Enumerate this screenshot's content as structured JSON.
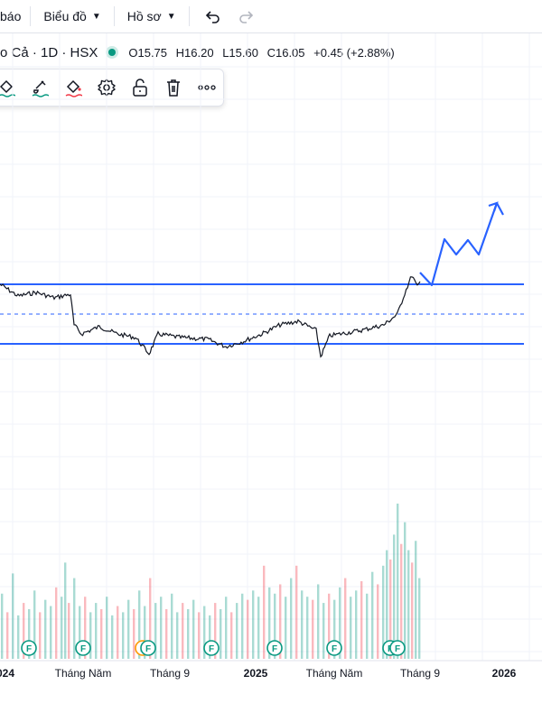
{
  "topbar": {
    "cut_label": "báo",
    "chart_menu": "Biểu đồ",
    "profile_menu": "Hồ sơ"
  },
  "legend": {
    "symbol_title": "o Cả · 1D · HSX",
    "open": "O15.75",
    "high": "H16.20",
    "low": "L15.60",
    "close": "C16.05",
    "change": "+0.45 (+2.88%)"
  },
  "colors": {
    "up": "#089981",
    "down": "#f23645",
    "line_blue": "#2962ff",
    "price": "#131722",
    "grid": "#f0f3fa"
  },
  "chart_data": {
    "type": "line",
    "series": [
      {
        "values": [
          [
            0,
            315
          ],
          [
            20,
            328
          ],
          [
            40,
            324
          ],
          [
            60,
            330
          ],
          [
            78,
            326
          ],
          [
            82,
            360
          ],
          [
            90,
            370
          ],
          [
            110,
            362
          ],
          [
            130,
            370
          ],
          [
            150,
            374
          ],
          [
            165,
            392
          ],
          [
            175,
            370
          ],
          [
            200,
            374
          ],
          [
            230,
            376
          ],
          [
            250,
            384
          ],
          [
            270,
            378
          ],
          [
            290,
            370
          ],
          [
            310,
            360
          ],
          [
            330,
            356
          ],
          [
            350,
            366
          ],
          [
            355,
            395
          ],
          [
            365,
            372
          ],
          [
            400,
            366
          ],
          [
            425,
            360
          ],
          [
            440,
            348
          ],
          [
            448,
            325
          ],
          [
            456,
            305
          ],
          [
            462,
            318
          ],
          [
            465,
            312
          ]
        ]
      }
    ],
    "volume": [
      {
        "x": 2,
        "v": 0.42
      },
      {
        "x": 8,
        "v": 0.3
      },
      {
        "x": 14,
        "v": 0.55
      },
      {
        "x": 20,
        "v": 0.28
      },
      {
        "x": 26,
        "v": 0.36
      },
      {
        "x": 32,
        "v": 0.32
      },
      {
        "x": 38,
        "v": 0.44
      },
      {
        "x": 44,
        "v": 0.3
      },
      {
        "x": 50,
        "v": 0.38
      },
      {
        "x": 56,
        "v": 0.34
      },
      {
        "x": 62,
        "v": 0.46
      },
      {
        "x": 68,
        "v": 0.4
      },
      {
        "x": 72,
        "v": 0.62
      },
      {
        "x": 76,
        "v": 0.36
      },
      {
        "x": 82,
        "v": 0.52
      },
      {
        "x": 88,
        "v": 0.34
      },
      {
        "x": 94,
        "v": 0.4
      },
      {
        "x": 100,
        "v": 0.3
      },
      {
        "x": 106,
        "v": 0.36
      },
      {
        "x": 112,
        "v": 0.32
      },
      {
        "x": 118,
        "v": 0.4
      },
      {
        "x": 124,
        "v": 0.28
      },
      {
        "x": 130,
        "v": 0.34
      },
      {
        "x": 136,
        "v": 0.3
      },
      {
        "x": 142,
        "v": 0.38
      },
      {
        "x": 148,
        "v": 0.32
      },
      {
        "x": 154,
        "v": 0.44
      },
      {
        "x": 160,
        "v": 0.34
      },
      {
        "x": 166,
        "v": 0.52
      },
      {
        "x": 172,
        "v": 0.36
      },
      {
        "x": 178,
        "v": 0.4
      },
      {
        "x": 184,
        "v": 0.32
      },
      {
        "x": 190,
        "v": 0.42
      },
      {
        "x": 196,
        "v": 0.3
      },
      {
        "x": 202,
        "v": 0.36
      },
      {
        "x": 208,
        "v": 0.32
      },
      {
        "x": 214,
        "v": 0.38
      },
      {
        "x": 220,
        "v": 0.3
      },
      {
        "x": 226,
        "v": 0.34
      },
      {
        "x": 232,
        "v": 0.28
      },
      {
        "x": 238,
        "v": 0.36
      },
      {
        "x": 244,
        "v": 0.32
      },
      {
        "x": 250,
        "v": 0.4
      },
      {
        "x": 256,
        "v": 0.3
      },
      {
        "x": 262,
        "v": 0.36
      },
      {
        "x": 268,
        "v": 0.42
      },
      {
        "x": 274,
        "v": 0.38
      },
      {
        "x": 280,
        "v": 0.44
      },
      {
        "x": 286,
        "v": 0.4
      },
      {
        "x": 292,
        "v": 0.6
      },
      {
        "x": 298,
        "v": 0.46
      },
      {
        "x": 304,
        "v": 0.42
      },
      {
        "x": 310,
        "v": 0.48
      },
      {
        "x": 316,
        "v": 0.4
      },
      {
        "x": 322,
        "v": 0.52
      },
      {
        "x": 328,
        "v": 0.6
      },
      {
        "x": 334,
        "v": 0.44
      },
      {
        "x": 340,
        "v": 0.4
      },
      {
        "x": 346,
        "v": 0.38
      },
      {
        "x": 352,
        "v": 0.48
      },
      {
        "x": 358,
        "v": 0.36
      },
      {
        "x": 364,
        "v": 0.42
      },
      {
        "x": 370,
        "v": 0.38
      },
      {
        "x": 376,
        "v": 0.46
      },
      {
        "x": 382,
        "v": 0.52
      },
      {
        "x": 388,
        "v": 0.4
      },
      {
        "x": 394,
        "v": 0.44
      },
      {
        "x": 400,
        "v": 0.5
      },
      {
        "x": 406,
        "v": 0.42
      },
      {
        "x": 412,
        "v": 0.56
      },
      {
        "x": 418,
        "v": 0.48
      },
      {
        "x": 424,
        "v": 0.6
      },
      {
        "x": 428,
        "v": 0.7
      },
      {
        "x": 432,
        "v": 0.64
      },
      {
        "x": 436,
        "v": 0.8
      },
      {
        "x": 440,
        "v": 1.0
      },
      {
        "x": 444,
        "v": 0.74
      },
      {
        "x": 448,
        "v": 0.88
      },
      {
        "x": 452,
        "v": 0.7
      },
      {
        "x": 456,
        "v": 0.62
      },
      {
        "x": 460,
        "v": 0.76
      },
      {
        "x": 464,
        "v": 0.52
      }
    ],
    "support_resistance": {
      "resistance_solid": 315,
      "mid_dashed": 348,
      "support_solid": 381
    },
    "projection": [
      [
        465,
        302
      ],
      [
        478,
        316
      ],
      [
        492,
        265
      ],
      [
        505,
        282
      ],
      [
        518,
        266
      ],
      [
        530,
        282
      ],
      [
        550,
        225
      ],
      [
        557,
        238
      ]
    ],
    "x_tick_labels": [
      "024",
      "Tháng Năm",
      "Tháng 9",
      "2025",
      "Tháng Năm",
      "Tháng 9",
      "2026"
    ],
    "x_tick_bold": [
      true,
      false,
      false,
      true,
      false,
      false,
      true
    ],
    "event_markers": [
      "F",
      "F",
      "F",
      "F",
      "F",
      "F",
      "F",
      "F",
      "F"
    ]
  }
}
